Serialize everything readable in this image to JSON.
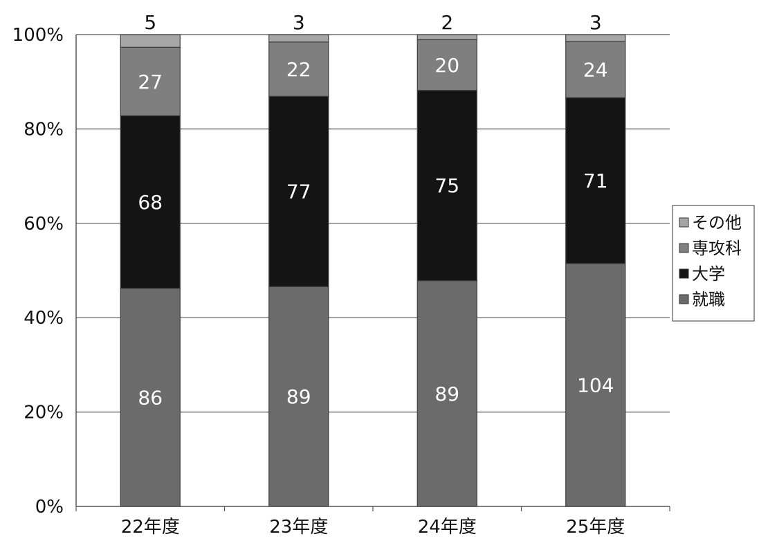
{
  "chart_data": {
    "type": "bar",
    "stacked": "percent",
    "categories": [
      "22年度",
      "23年度",
      "24年度",
      "25年度"
    ],
    "series": [
      {
        "name": "就職",
        "values": [
          86,
          89,
          89,
          104
        ],
        "color": "#6b6b6b",
        "label_color": "#ffffff"
      },
      {
        "name": "大学",
        "values": [
          68,
          77,
          75,
          71
        ],
        "color": "#141414",
        "label_color": "#ffffff"
      },
      {
        "name": "専攻科",
        "values": [
          27,
          22,
          20,
          24
        ],
        "color": "#7f7f7f",
        "label_color": "#ffffff"
      },
      {
        "name": "その他",
        "values": [
          5,
          3,
          2,
          3
        ],
        "color": "#a6a6a6",
        "label_color": "#111111"
      }
    ],
    "y_ticks": [
      "0%",
      "20%",
      "40%",
      "60%",
      "80%",
      "100%"
    ],
    "ylim": [
      0,
      100
    ],
    "grid": true,
    "legend_position": "right",
    "legend_order": [
      "その他",
      "専攻科",
      "大学",
      "就職"
    ]
  }
}
